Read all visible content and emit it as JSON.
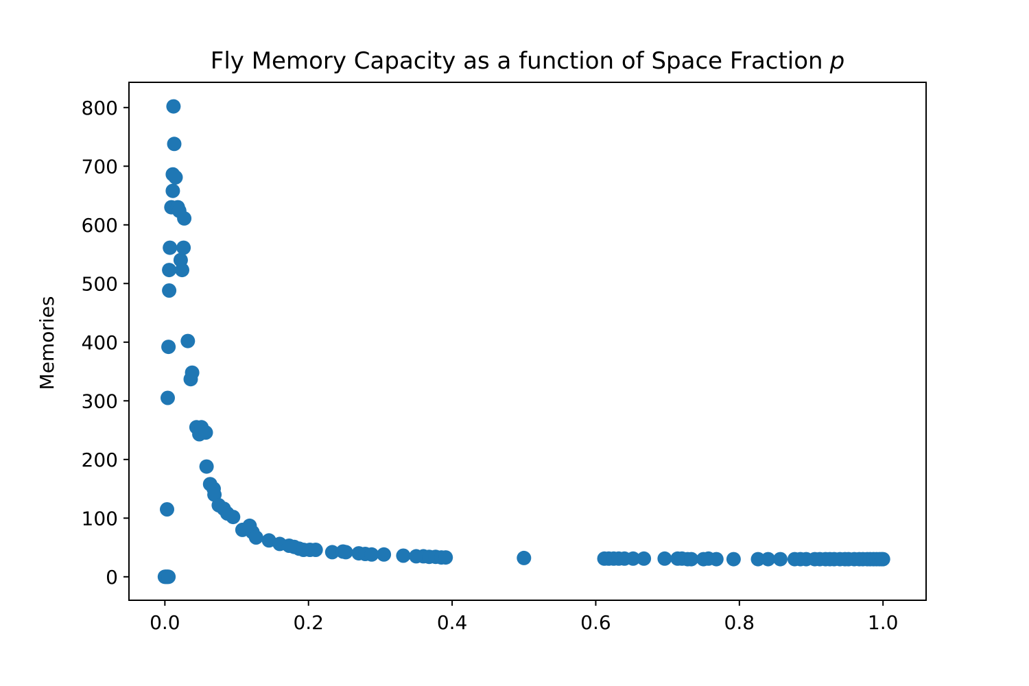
{
  "chart_data": {
    "type": "scatter",
    "title": "Fly Memory Capacity as a function of Space Fraction",
    "title_italic_suffix": "p",
    "xlabel": "",
    "ylabel": "Memories",
    "xlim": [
      -0.05,
      1.06
    ],
    "ylim": [
      -40,
      843
    ],
    "xticks": [
      0.0,
      0.2,
      0.4,
      0.6,
      0.8,
      1.0
    ],
    "xtick_labels": [
      "0.0",
      "0.2",
      "0.4",
      "0.6",
      "0.8",
      "1.0"
    ],
    "yticks": [
      0,
      100,
      200,
      300,
      400,
      500,
      600,
      700,
      800
    ],
    "ytick_labels": [
      "0",
      "100",
      "200",
      "300",
      "400",
      "500",
      "600",
      "700",
      "800"
    ],
    "grid": false,
    "legend": false,
    "marker_color": "#1f77b4",
    "series": [
      {
        "points": [
          [
            0.0,
            0
          ],
          [
            0.001,
            0
          ],
          [
            0.002,
            0
          ],
          [
            0.003,
            0
          ],
          [
            0.004,
            0
          ],
          [
            0.005,
            0
          ],
          [
            0.003,
            115
          ],
          [
            0.004,
            305
          ],
          [
            0.005,
            392
          ],
          [
            0.006,
            488
          ],
          [
            0.006,
            523
          ],
          [
            0.007,
            561
          ],
          [
            0.009,
            630
          ],
          [
            0.011,
            658
          ],
          [
            0.011,
            686
          ],
          [
            0.012,
            802
          ],
          [
            0.013,
            738
          ],
          [
            0.015,
            681
          ],
          [
            0.018,
            630
          ],
          [
            0.02,
            624
          ],
          [
            0.022,
            540
          ],
          [
            0.024,
            523
          ],
          [
            0.026,
            561
          ],
          [
            0.027,
            611
          ],
          [
            0.032,
            402
          ],
          [
            0.036,
            337
          ],
          [
            0.038,
            348
          ],
          [
            0.044,
            255
          ],
          [
            0.048,
            243
          ],
          [
            0.051,
            255
          ],
          [
            0.057,
            246
          ],
          [
            0.058,
            188
          ],
          [
            0.063,
            158
          ],
          [
            0.068,
            150
          ],
          [
            0.069,
            140
          ],
          [
            0.075,
            122
          ],
          [
            0.082,
            116
          ],
          [
            0.087,
            108
          ],
          [
            0.095,
            102
          ],
          [
            0.108,
            80
          ],
          [
            0.118,
            87
          ],
          [
            0.122,
            76
          ],
          [
            0.127,
            67
          ],
          [
            0.145,
            62
          ],
          [
            0.16,
            56
          ],
          [
            0.173,
            53
          ],
          [
            0.18,
            51
          ],
          [
            0.187,
            48
          ],
          [
            0.193,
            46
          ],
          [
            0.202,
            46
          ],
          [
            0.21,
            46
          ],
          [
            0.233,
            42
          ],
          [
            0.248,
            43
          ],
          [
            0.252,
            42
          ],
          [
            0.27,
            40
          ],
          [
            0.279,
            39
          ],
          [
            0.288,
            38
          ],
          [
            0.305,
            38
          ],
          [
            0.332,
            36
          ],
          [
            0.35,
            35
          ],
          [
            0.36,
            35
          ],
          [
            0.368,
            34
          ],
          [
            0.377,
            34
          ],
          [
            0.385,
            33
          ],
          [
            0.391,
            33
          ],
          [
            0.5,
            32
          ],
          [
            0.612,
            31
          ],
          [
            0.618,
            31
          ],
          [
            0.625,
            31
          ],
          [
            0.632,
            31
          ],
          [
            0.64,
            31
          ],
          [
            0.652,
            31
          ],
          [
            0.667,
            31
          ],
          [
            0.696,
            31
          ],
          [
            0.714,
            31
          ],
          [
            0.72,
            31
          ],
          [
            0.728,
            30
          ],
          [
            0.733,
            30
          ],
          [
            0.75,
            30
          ],
          [
            0.757,
            31
          ],
          [
            0.768,
            30
          ],
          [
            0.792,
            30
          ],
          [
            0.826,
            30
          ],
          [
            0.84,
            30
          ],
          [
            0.857,
            30
          ],
          [
            0.877,
            30
          ],
          [
            0.885,
            30
          ],
          [
            0.893,
            30
          ],
          [
            0.905,
            30
          ],
          [
            0.912,
            30
          ],
          [
            0.92,
            30
          ],
          [
            0.926,
            30
          ],
          [
            0.932,
            30
          ],
          [
            0.94,
            30
          ],
          [
            0.947,
            30
          ],
          [
            0.952,
            30
          ],
          [
            0.96,
            30
          ],
          [
            0.967,
            30
          ],
          [
            0.972,
            30
          ],
          [
            0.978,
            30
          ],
          [
            0.982,
            30
          ],
          [
            0.987,
            30
          ],
          [
            0.991,
            30
          ],
          [
            0.995,
            30
          ],
          [
            0.998,
            30
          ],
          [
            1.0,
            30
          ]
        ]
      }
    ]
  }
}
